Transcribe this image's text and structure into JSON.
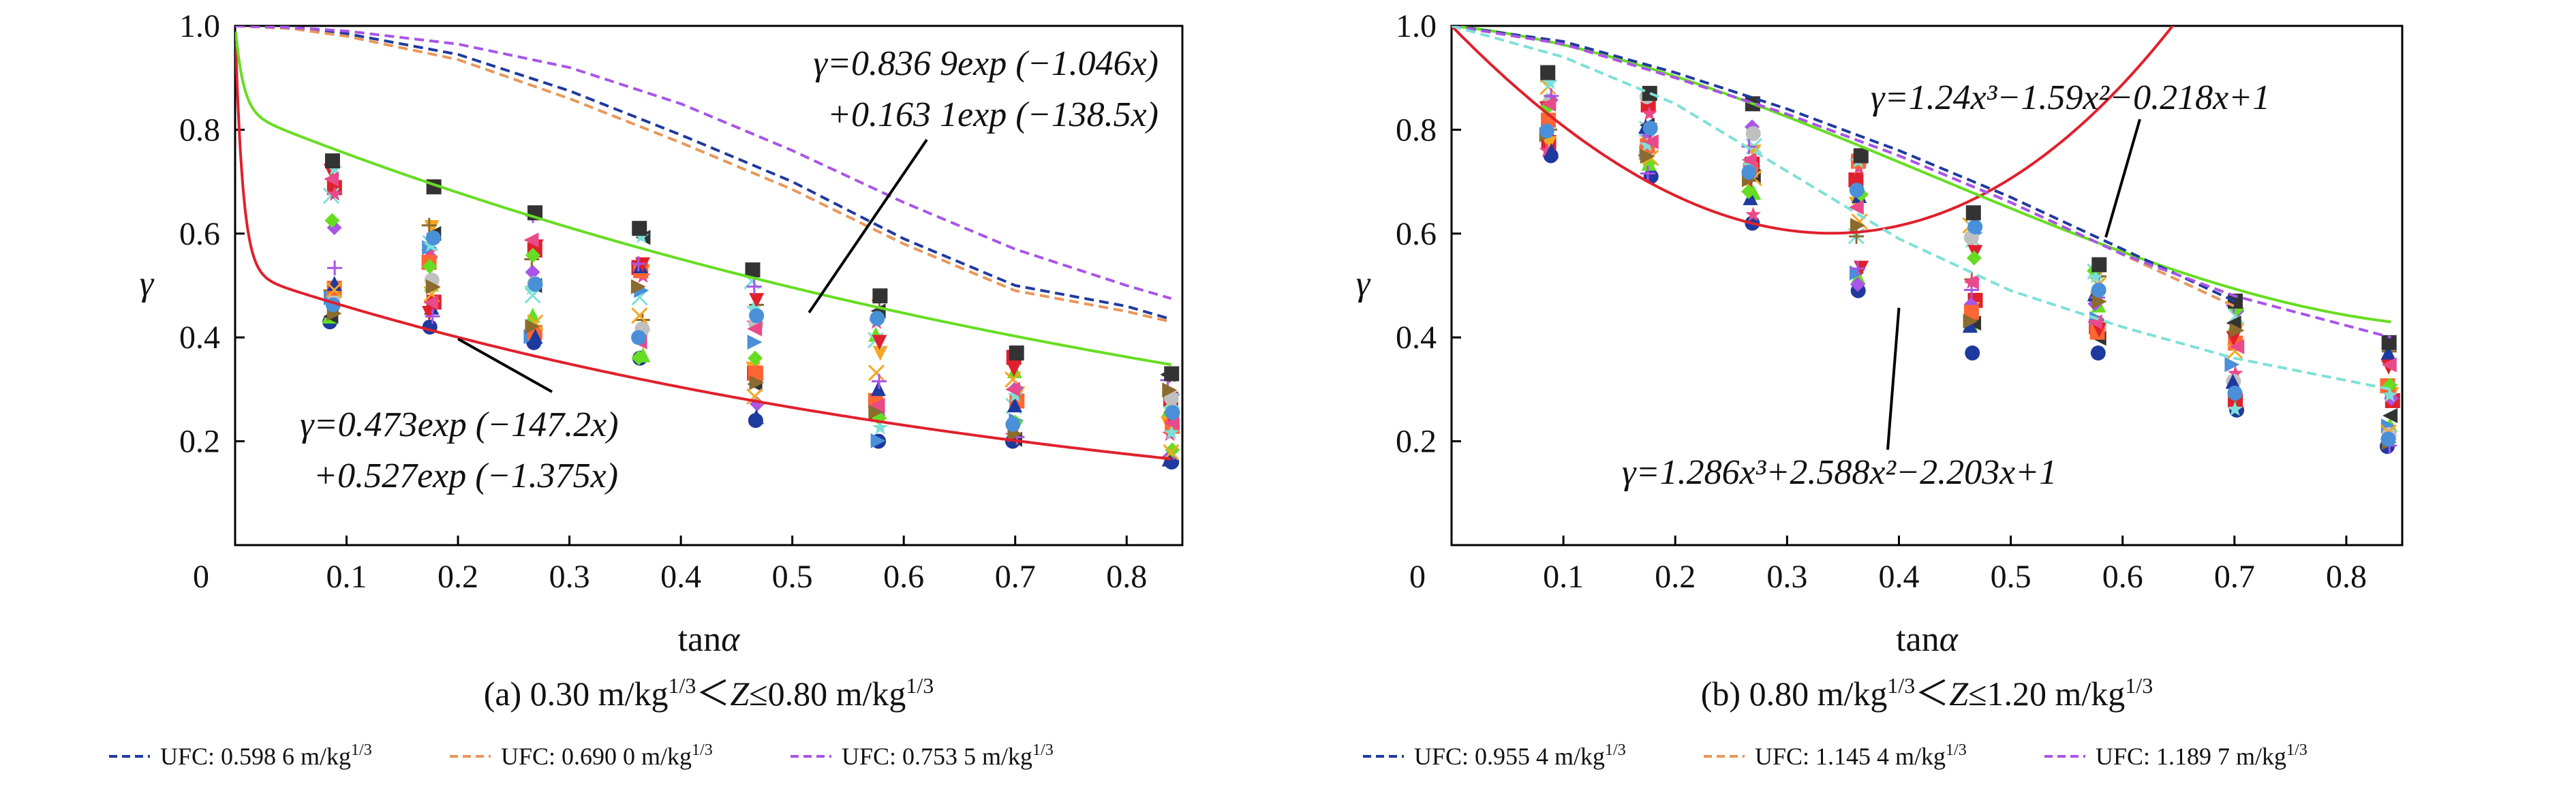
{
  "chart_data": [
    {
      "panel": "a",
      "type": "scatter",
      "caption": "(a) 0.30 m/kg¹ᐟ³＜Z≤0.80 m/kg¹ᐟ³",
      "caption_parts": {
        "prefix": "(a) 0.30 m/kg",
        "sup1": "1/3",
        "mid": "＜",
        "z": "Z",
        "rel": "≤",
        "val2": "0.80 m/kg",
        "sup2": "1/3"
      },
      "xlabel": {
        "pre": "tan",
        "greek": "α"
      },
      "ylabel": "γ",
      "xlim": [
        0,
        0.85
      ],
      "ylim": [
        0,
        1.0
      ],
      "xticks": [
        0.1,
        0.2,
        0.3,
        0.4,
        0.5,
        0.6,
        0.7,
        0.8
      ],
      "yticks": [
        0.2,
        0.4,
        0.6,
        0.8,
        1.0
      ],
      "origin_label": "0",
      "grid": false,
      "curves": [
        {
          "role": "fit-lower",
          "color": "#e0202c",
          "style": "solid",
          "model": "double-exp",
          "params": [
            0.473,
            -147.2,
            0.527,
            -1.375
          ]
        },
        {
          "role": "fit-upper",
          "color": "#66dd22",
          "style": "solid",
          "model": "double-exp",
          "params": [
            0.8369,
            -1.046,
            0.1631,
            -138.5
          ]
        },
        {
          "role": "ufc-1",
          "color": "#1f3a9e",
          "style": "dashed",
          "x": [
            0,
            0.05,
            0.1,
            0.2,
            0.3,
            0.4,
            0.5,
            0.6,
            0.7,
            0.8,
            0.84
          ],
          "y": [
            1.0,
            0.995,
            0.985,
            0.945,
            0.875,
            0.79,
            0.7,
            0.59,
            0.5,
            0.46,
            0.435
          ]
        },
        {
          "role": "ufc-2",
          "color": "#e8975a",
          "style": "dashed",
          "x": [
            0,
            0.05,
            0.1,
            0.2,
            0.3,
            0.4,
            0.5,
            0.6,
            0.7,
            0.8,
            0.84
          ],
          "y": [
            1.0,
            0.995,
            0.98,
            0.935,
            0.86,
            0.775,
            0.685,
            0.58,
            0.49,
            0.45,
            0.43
          ]
        },
        {
          "role": "ufc-3",
          "color": "#a855e8",
          "style": "dashed",
          "x": [
            0,
            0.05,
            0.1,
            0.2,
            0.3,
            0.4,
            0.5,
            0.6,
            0.7,
            0.8,
            0.84
          ],
          "y": [
            1.0,
            0.997,
            0.99,
            0.965,
            0.92,
            0.85,
            0.76,
            0.66,
            0.57,
            0.5,
            0.475
          ]
        }
      ],
      "scatter_x": [
        0.087,
        0.176,
        0.268,
        0.364,
        0.466,
        0.577,
        0.7,
        0.839
      ],
      "scatter_min": [
        0.43,
        0.42,
        0.39,
        0.36,
        0.24,
        0.2,
        0.2,
        0.16
      ],
      "scatter_max": [
        0.74,
        0.69,
        0.64,
        0.61,
        0.53,
        0.48,
        0.37,
        0.33
      ],
      "annotations": [
        {
          "id": "eq-upper",
          "line1": "γ=0.836 9exp (−1.046x)",
          "line2": "+0.163 1exp (−138.5x)",
          "points_to": "fit-upper"
        },
        {
          "id": "eq-lower",
          "line1": "γ=0.473exp (−147.2x)",
          "line2": "+0.527exp (−1.375x)",
          "points_to": "fit-lower"
        }
      ]
    },
    {
      "panel": "b",
      "type": "scatter",
      "caption": "(b) 0.80 m/kg¹ᐟ³＜Z≤1.20 m/kg¹ᐟ³",
      "caption_parts": {
        "prefix": "(b) 0.80 m/kg",
        "sup1": "1/3",
        "mid": "＜",
        "z": "Z",
        "rel": "≤",
        "val2": "1.20 m/kg",
        "sup2": "1/3"
      },
      "xlabel": {
        "pre": "tan",
        "greek": "α"
      },
      "ylabel": "γ",
      "xlim": [
        0,
        0.85
      ],
      "ylim": [
        0,
        1.0
      ],
      "xticks": [
        0.1,
        0.2,
        0.3,
        0.4,
        0.5,
        0.6,
        0.7,
        0.8
      ],
      "yticks": [
        0.2,
        0.4,
        0.6,
        0.8,
        1.0
      ],
      "origin_label": "0",
      "grid": false,
      "curves": [
        {
          "role": "fit-lower",
          "color": "#e0202c",
          "style": "solid",
          "model": "cubic",
          "params": [
            1.286,
            2.588,
            -2.203,
            1
          ]
        },
        {
          "role": "fit-upper",
          "color": "#66dd22",
          "style": "solid",
          "model": "cubic",
          "params": [
            1.24,
            -1.59,
            -0.218,
            1
          ]
        },
        {
          "role": "ufc-1",
          "color": "#1f3a9e",
          "style": "dashed",
          "x": [
            0,
            0.1,
            0.2,
            0.3,
            0.4,
            0.5,
            0.6,
            0.7
          ],
          "y": [
            1.0,
            0.97,
            0.91,
            0.84,
            0.76,
            0.67,
            0.57,
            0.47
          ]
        },
        {
          "role": "ufc-2",
          "color": "#e8975a",
          "style": "dashed",
          "x": [
            0,
            0.1,
            0.2,
            0.3,
            0.4,
            0.5,
            0.6,
            0.7
          ],
          "y": [
            1.0,
            0.965,
            0.9,
            0.83,
            0.75,
            0.66,
            0.56,
            0.46
          ]
        },
        {
          "role": "ufc-3",
          "color": "#a855e8",
          "style": "dashed",
          "x": [
            0,
            0.1,
            0.2,
            0.3,
            0.4,
            0.5,
            0.6,
            0.7,
            0.84
          ],
          "y": [
            1.0,
            0.965,
            0.9,
            0.83,
            0.75,
            0.66,
            0.56,
            0.48,
            0.4
          ]
        },
        {
          "role": "ufc-4",
          "color": "#7de0d8",
          "style": "dashed",
          "x": [
            0,
            0.1,
            0.2,
            0.3,
            0.4,
            0.5,
            0.6,
            0.7,
            0.84
          ],
          "y": [
            1.0,
            0.94,
            0.85,
            0.72,
            0.59,
            0.49,
            0.42,
            0.36,
            0.3
          ]
        }
      ],
      "scatter_x": [
        0.087,
        0.176,
        0.268,
        0.364,
        0.466,
        0.577,
        0.7,
        0.839
      ],
      "scatter_min": [
        0.75,
        0.71,
        0.62,
        0.49,
        0.37,
        0.37,
        0.26,
        0.19
      ],
      "scatter_max": [
        0.91,
        0.87,
        0.85,
        0.75,
        0.64,
        0.54,
        0.47,
        0.39
      ],
      "annotations": [
        {
          "id": "eq-upper",
          "text": "γ=1.24x³−1.59x²−0.218x+1",
          "points_to": "fit-upper"
        },
        {
          "id": "eq-lower",
          "text": "γ=1.286x³+2.588x²−2.203x+1",
          "points_to": "fit-lower"
        }
      ]
    }
  ],
  "legends": [
    {
      "panel": "a",
      "entries": [
        {
          "label": "UFC: 0.598 6 m/kg",
          "sup": "1/3",
          "color": "#1f3a9e"
        },
        {
          "label": "UFC: 0.690 0 m/kg",
          "sup": "1/3",
          "color": "#e8975a"
        },
        {
          "label": "UFC: 0.753 5 m/kg",
          "sup": "1/3",
          "color": "#a855e8"
        }
      ]
    },
    {
      "panel": "b",
      "entries": [
        {
          "label": "UFC: 0.955 4 m/kg",
          "sup": "1/3",
          "color": "#1f3a9e"
        },
        {
          "label": "UFC: 1.145 4 m/kg",
          "sup": "1/3",
          "color": "#e8975a"
        },
        {
          "label": "UFC: 1.189 7 m/kg",
          "sup": "1/3",
          "color": "#a855e8"
        }
      ]
    }
  ],
  "marker_palette": [
    "#1f3a9e",
    "#e0202c",
    "#66dd22",
    "#f5a623",
    "#a855e8",
    "#7de0d8",
    "#8b6b2e",
    "#e84a8a",
    "#4a90d9",
    "#333333",
    "#c0c0c0",
    "#ff6633"
  ]
}
